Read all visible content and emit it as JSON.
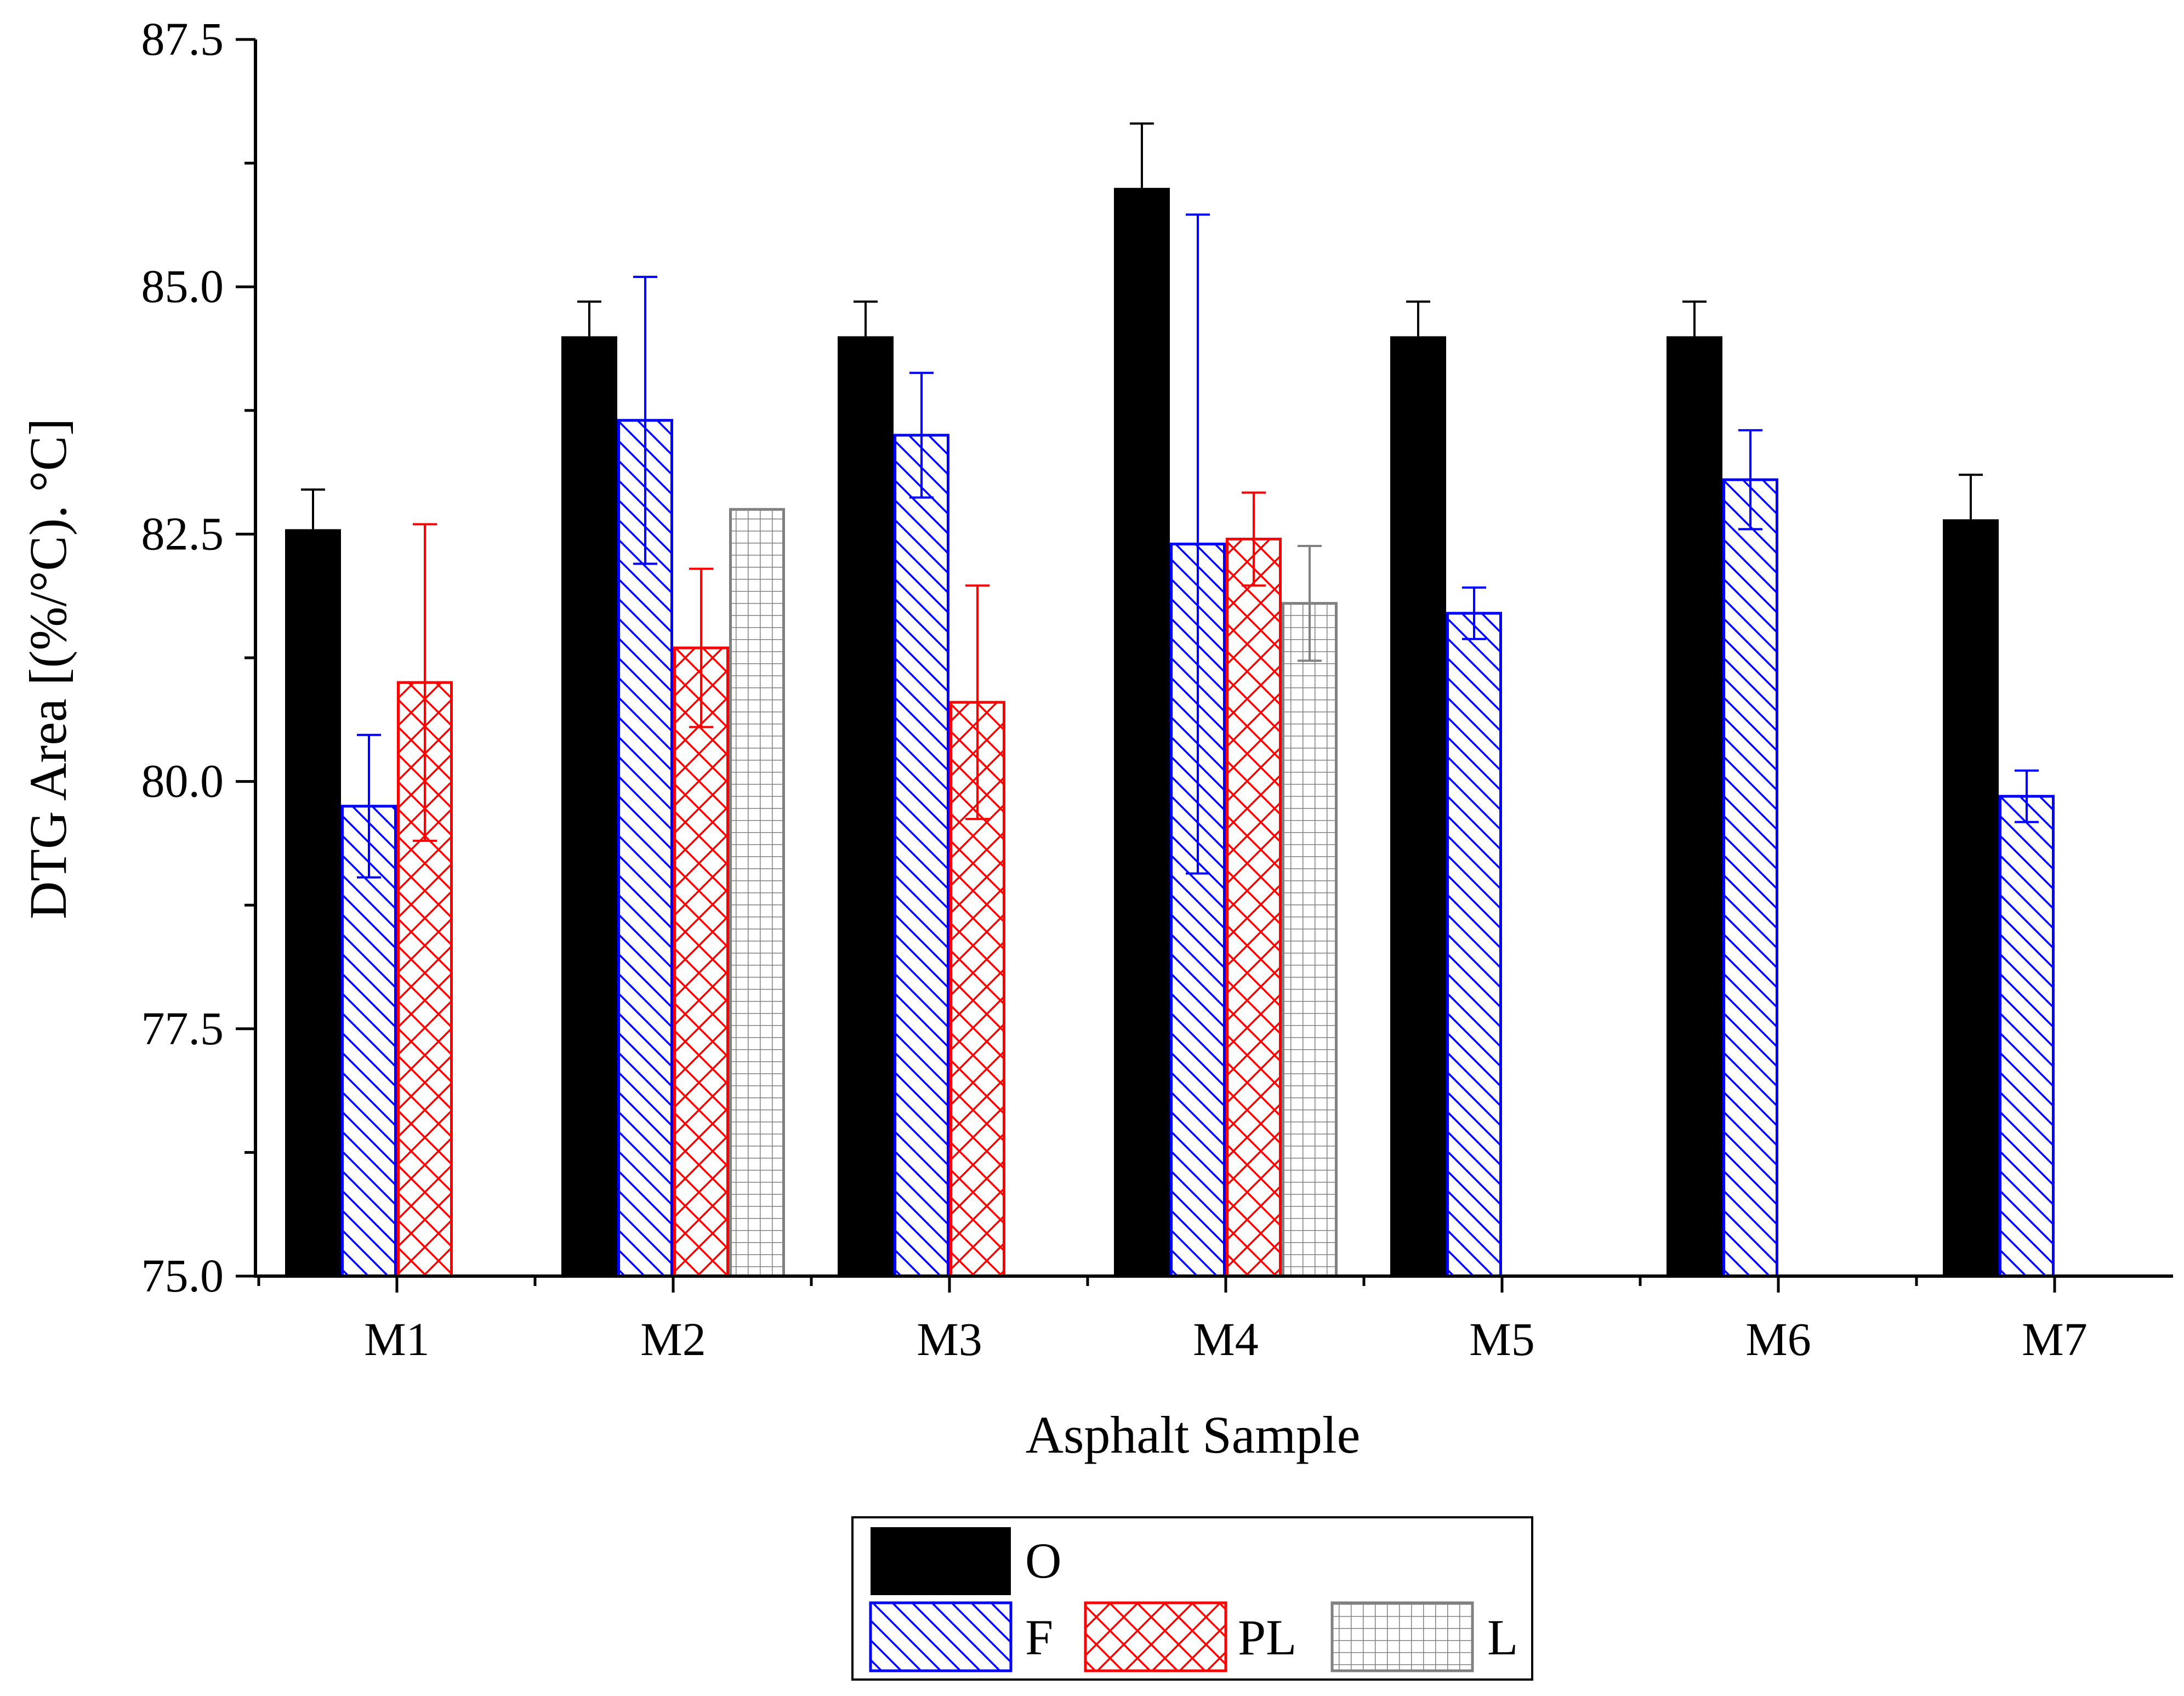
{
  "chart_data": {
    "type": "bar",
    "title": "",
    "xlabel": "Asphalt Sample",
    "ylabel": "DTG Area [(%/°C). °C]",
    "ylim": [
      75.0,
      87.5
    ],
    "yticks": [
      "75.0",
      "77.5",
      "80.0",
      "82.5",
      "85.0",
      "87.5"
    ],
    "categories": [
      "M1",
      "M2",
      "M3",
      "M4",
      "M5",
      "M6",
      "M7"
    ],
    "series": [
      {
        "name": "O",
        "color": "#000000",
        "pattern": "solid",
        "values": [
          82.55,
          84.5,
          84.5,
          86.0,
          84.5,
          84.5,
          82.65
        ],
        "errors": [
          0.4,
          0.35,
          0.35,
          0.65,
          0.35,
          0.35,
          0.45
        ]
      },
      {
        "name": "F",
        "color": "#0000ff",
        "pattern": "diagonal",
        "values": [
          79.75,
          83.65,
          83.5,
          82.4,
          81.7,
          83.05,
          79.85
        ],
        "errors": [
          0.72,
          1.45,
          0.63,
          3.33,
          0.26,
          0.5,
          0.26
        ]
      },
      {
        "name": "PL",
        "color": "#ff0000",
        "pattern": "crosshatch",
        "values": [
          81.0,
          81.35,
          80.8,
          82.45,
          null,
          null,
          null
        ],
        "errors": [
          1.6,
          0.8,
          1.18,
          0.47,
          null,
          null,
          null
        ]
      },
      {
        "name": "L",
        "color": "#808080",
        "pattern": "grid",
        "values": [
          null,
          82.75,
          null,
          81.8,
          null,
          null,
          null
        ],
        "errors": [
          null,
          0.0,
          null,
          0.58,
          null,
          null,
          null
        ]
      }
    ],
    "legend_position": "bottom-center"
  }
}
